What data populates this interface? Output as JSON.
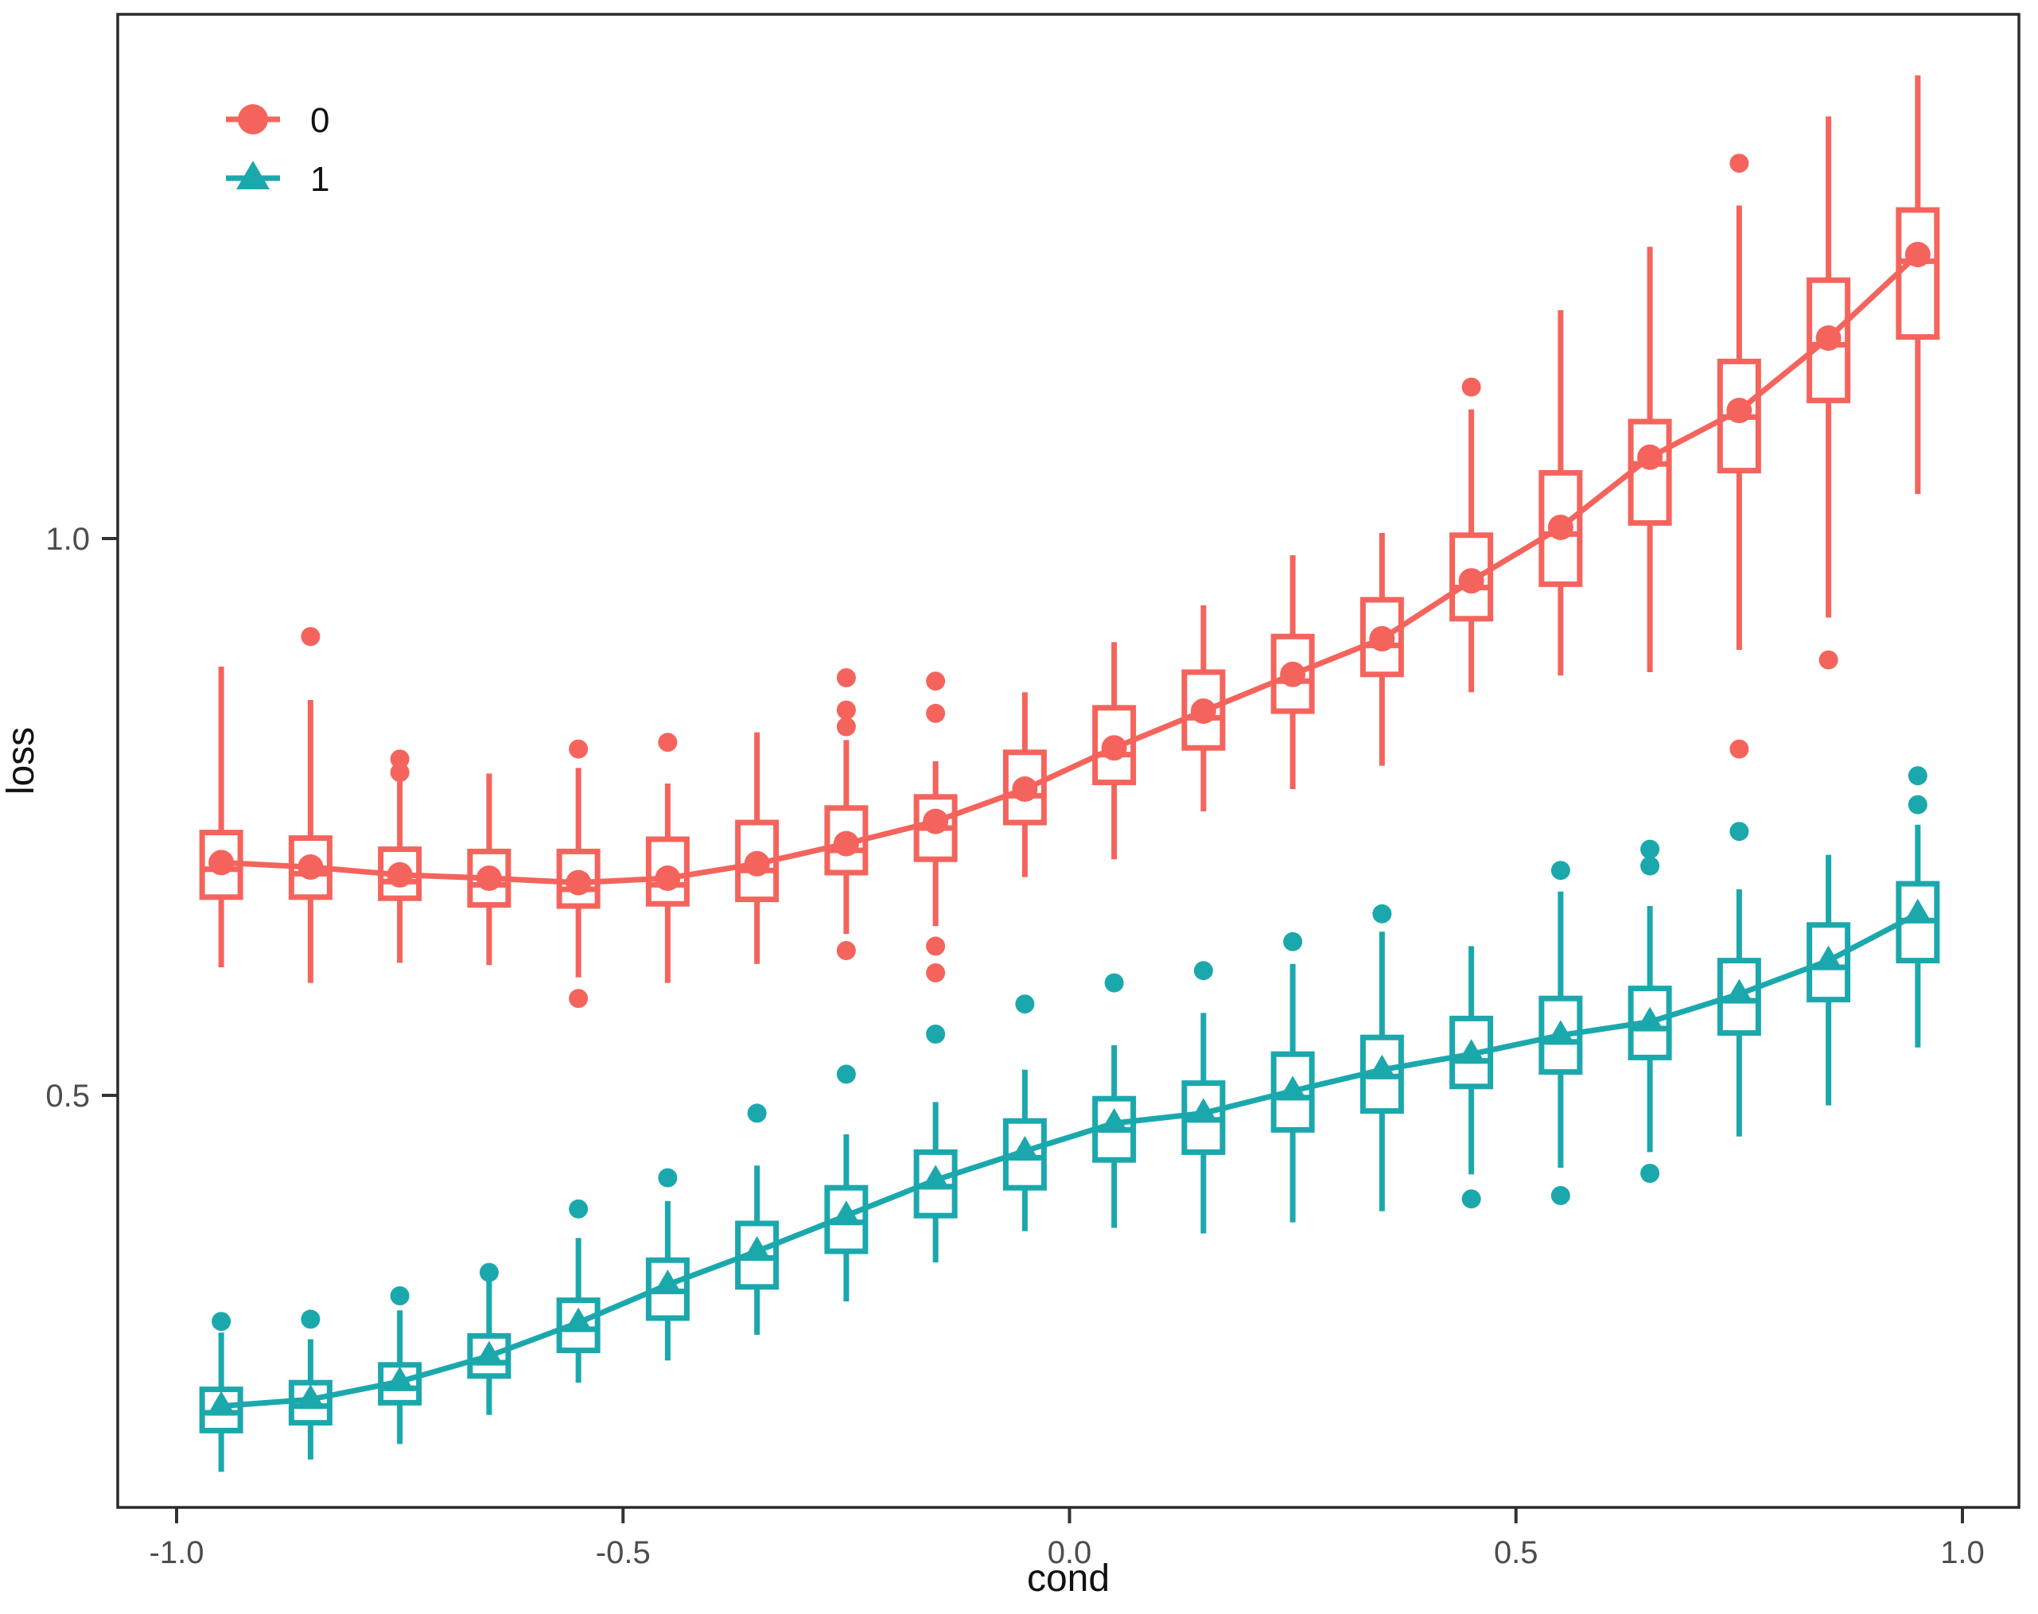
{
  "figure": {
    "xlabel": "cond",
    "ylabel": "loss",
    "background": "#ffffff",
    "border_color": "#2b2b2b"
  },
  "legend": {
    "items": [
      {
        "label": "0",
        "marker": "circle",
        "color": "#f4645d"
      },
      {
        "label": "1",
        "marker": "triangle",
        "color": "#1ba8ad"
      }
    ]
  },
  "chart_data": {
    "type": "boxplot-with-mean-line",
    "title": "",
    "xlabel": "cond",
    "ylabel": "loss",
    "xlim": [
      -1.066,
      1.063
    ],
    "ylim": [
      0.13,
      1.471
    ],
    "x_ticks": [
      -1.0,
      -0.5,
      0.0,
      0.5,
      1.0
    ],
    "x_tick_labels": [
      "-1.0",
      "-0.5",
      "0.0",
      "0.5",
      "1.0"
    ],
    "y_ticks": [
      0.5,
      1.0
    ],
    "y_tick_labels": [
      "0.5",
      "1.0"
    ],
    "grid": false,
    "legend_position": "top-left-inside",
    "categories": [
      -0.95,
      -0.85,
      -0.75,
      -0.65,
      -0.55,
      -0.45,
      -0.35,
      -0.25,
      -0.15,
      -0.05,
      0.05,
      0.15,
      0.25,
      0.35,
      0.45,
      0.55,
      0.65,
      0.75,
      0.85,
      0.95
    ],
    "series": [
      {
        "name": "0",
        "marker": "circle",
        "color": "#f4645d",
        "boxes": [
          {
            "x": -0.95,
            "q1": 0.678,
            "median": 0.703,
            "q3": 0.736,
            "mean": 0.709,
            "whisker_lo": 0.615,
            "whisker_hi": 0.885,
            "outliers": []
          },
          {
            "x": -0.85,
            "q1": 0.678,
            "median": 0.699,
            "q3": 0.731,
            "mean": 0.705,
            "whisker_lo": 0.601,
            "whisker_hi": 0.855,
            "outliers": [
              0.912
            ]
          },
          {
            "x": -0.75,
            "q1": 0.677,
            "median": 0.692,
            "q3": 0.721,
            "mean": 0.698,
            "whisker_lo": 0.619,
            "whisker_hi": 0.784,
            "outliers": [
              0.802,
              0.79
            ]
          },
          {
            "x": -0.65,
            "q1": 0.671,
            "median": 0.689,
            "q3": 0.719,
            "mean": 0.695,
            "whisker_lo": 0.617,
            "whisker_hi": 0.789,
            "outliers": []
          },
          {
            "x": -0.55,
            "q1": 0.67,
            "median": 0.685,
            "q3": 0.719,
            "mean": 0.691,
            "whisker_lo": 0.606,
            "whisker_hi": 0.794,
            "outliers": [
              0.811,
              0.587
            ]
          },
          {
            "x": -0.45,
            "q1": 0.672,
            "median": 0.689,
            "q3": 0.73,
            "mean": 0.695,
            "whisker_lo": 0.601,
            "whisker_hi": 0.78,
            "outliers": [
              0.817
            ]
          },
          {
            "x": -0.35,
            "q1": 0.676,
            "median": 0.702,
            "q3": 0.745,
            "mean": 0.708,
            "whisker_lo": 0.618,
            "whisker_hi": 0.826,
            "outliers": []
          },
          {
            "x": -0.25,
            "q1": 0.7,
            "median": 0.72,
            "q3": 0.758,
            "mean": 0.726,
            "whisker_lo": 0.645,
            "whisker_hi": 0.819,
            "outliers": [
              0.875,
              0.846,
              0.831,
              0.63
            ]
          },
          {
            "x": -0.15,
            "q1": 0.712,
            "median": 0.74,
            "q3": 0.768,
            "mean": 0.746,
            "whisker_lo": 0.652,
            "whisker_hi": 0.8,
            "outliers": [
              0.872,
              0.843,
              0.634,
              0.61
            ]
          },
          {
            "x": -0.05,
            "q1": 0.745,
            "median": 0.769,
            "q3": 0.808,
            "mean": 0.775,
            "whisker_lo": 0.696,
            "whisker_hi": 0.862,
            "outliers": []
          },
          {
            "x": 0.05,
            "q1": 0.781,
            "median": 0.806,
            "q3": 0.848,
            "mean": 0.812,
            "whisker_lo": 0.712,
            "whisker_hi": 0.907,
            "outliers": []
          },
          {
            "x": 0.15,
            "q1": 0.812,
            "median": 0.839,
            "q3": 0.88,
            "mean": 0.845,
            "whisker_lo": 0.755,
            "whisker_hi": 0.94,
            "outliers": []
          },
          {
            "x": 0.25,
            "q1": 0.845,
            "median": 0.872,
            "q3": 0.912,
            "mean": 0.878,
            "whisker_lo": 0.775,
            "whisker_hi": 0.985,
            "outliers": []
          },
          {
            "x": 0.35,
            "q1": 0.878,
            "median": 0.904,
            "q3": 0.945,
            "mean": 0.91,
            "whisker_lo": 0.796,
            "whisker_hi": 1.005,
            "outliers": []
          },
          {
            "x": 0.45,
            "q1": 0.928,
            "median": 0.956,
            "q3": 1.003,
            "mean": 0.962,
            "whisker_lo": 0.862,
            "whisker_hi": 1.116,
            "outliers": [
              1.136
            ]
          },
          {
            "x": 0.55,
            "q1": 0.959,
            "median": 1.004,
            "q3": 1.059,
            "mean": 1.01,
            "whisker_lo": 0.877,
            "whisker_hi": 1.205,
            "outliers": []
          },
          {
            "x": 0.65,
            "q1": 1.014,
            "median": 1.067,
            "q3": 1.105,
            "mean": 1.073,
            "whisker_lo": 0.88,
            "whisker_hi": 1.262,
            "outliers": []
          },
          {
            "x": 0.75,
            "q1": 1.061,
            "median": 1.109,
            "q3": 1.159,
            "mean": 1.115,
            "whisker_lo": 0.9,
            "whisker_hi": 1.299,
            "outliers": [
              1.337,
              0.811
            ]
          },
          {
            "x": 0.85,
            "q1": 1.124,
            "median": 1.174,
            "q3": 1.232,
            "mean": 1.18,
            "whisker_lo": 0.929,
            "whisker_hi": 1.379,
            "outliers": [
              0.891
            ]
          },
          {
            "x": 0.95,
            "q1": 1.181,
            "median": 1.249,
            "q3": 1.295,
            "mean": 1.255,
            "whisker_lo": 1.04,
            "whisker_hi": 1.416,
            "outliers": []
          }
        ]
      },
      {
        "name": "1",
        "marker": "triangle",
        "color": "#1ba8ad",
        "boxes": [
          {
            "x": -0.95,
            "q1": 0.199,
            "median": 0.215,
            "q3": 0.236,
            "mean": 0.221,
            "whisker_lo": 0.162,
            "whisker_hi": 0.287,
            "outliers": [
              0.297
            ]
          },
          {
            "x": -0.85,
            "q1": 0.206,
            "median": 0.221,
            "q3": 0.242,
            "mean": 0.227,
            "whisker_lo": 0.173,
            "whisker_hi": 0.281,
            "outliers": [
              0.299
            ]
          },
          {
            "x": -0.75,
            "q1": 0.224,
            "median": 0.237,
            "q3": 0.258,
            "mean": 0.243,
            "whisker_lo": 0.187,
            "whisker_hi": 0.307,
            "outliers": [
              0.32
            ]
          },
          {
            "x": -0.65,
            "q1": 0.248,
            "median": 0.26,
            "q3": 0.284,
            "mean": 0.266,
            "whisker_lo": 0.213,
            "whisker_hi": 0.333,
            "outliers": [
              0.341
            ]
          },
          {
            "x": -0.55,
            "q1": 0.271,
            "median": 0.29,
            "q3": 0.316,
            "mean": 0.296,
            "whisker_lo": 0.242,
            "whisker_hi": 0.372,
            "outliers": [
              0.398
            ]
          },
          {
            "x": -0.45,
            "q1": 0.3,
            "median": 0.324,
            "q3": 0.352,
            "mean": 0.33,
            "whisker_lo": 0.262,
            "whisker_hi": 0.405,
            "outliers": [
              0.426
            ]
          },
          {
            "x": -0.35,
            "q1": 0.328,
            "median": 0.354,
            "q3": 0.385,
            "mean": 0.36,
            "whisker_lo": 0.285,
            "whisker_hi": 0.437,
            "outliers": [
              0.484
            ]
          },
          {
            "x": -0.25,
            "q1": 0.36,
            "median": 0.386,
            "q3": 0.417,
            "mean": 0.392,
            "whisker_lo": 0.315,
            "whisker_hi": 0.465,
            "outliers": [
              0.519
            ]
          },
          {
            "x": -0.15,
            "q1": 0.392,
            "median": 0.418,
            "q3": 0.449,
            "mean": 0.424,
            "whisker_lo": 0.35,
            "whisker_hi": 0.494,
            "outliers": [
              0.555
            ]
          },
          {
            "x": -0.05,
            "q1": 0.417,
            "median": 0.444,
            "q3": 0.477,
            "mean": 0.45,
            "whisker_lo": 0.378,
            "whisker_hi": 0.523,
            "outliers": [
              0.582
            ]
          },
          {
            "x": 0.05,
            "q1": 0.442,
            "median": 0.469,
            "q3": 0.497,
            "mean": 0.475,
            "whisker_lo": 0.381,
            "whisker_hi": 0.545,
            "outliers": [
              0.601
            ]
          },
          {
            "x": 0.15,
            "q1": 0.449,
            "median": 0.478,
            "q3": 0.511,
            "mean": 0.484,
            "whisker_lo": 0.376,
            "whisker_hi": 0.574,
            "outliers": [
              0.612
            ]
          },
          {
            "x": 0.25,
            "q1": 0.469,
            "median": 0.498,
            "q3": 0.537,
            "mean": 0.504,
            "whisker_lo": 0.386,
            "whisker_hi": 0.618,
            "outliers": [
              0.638
            ]
          },
          {
            "x": 0.35,
            "q1": 0.486,
            "median": 0.517,
            "q3": 0.552,
            "mean": 0.523,
            "whisker_lo": 0.396,
            "whisker_hi": 0.647,
            "outliers": [
              0.663
            ]
          },
          {
            "x": 0.45,
            "q1": 0.508,
            "median": 0.531,
            "q3": 0.569,
            "mean": 0.537,
            "whisker_lo": 0.429,
            "whisker_hi": 0.634,
            "outliers": [
              0.407
            ]
          },
          {
            "x": 0.55,
            "q1": 0.521,
            "median": 0.548,
            "q3": 0.587,
            "mean": 0.554,
            "whisker_lo": 0.435,
            "whisker_hi": 0.683,
            "outliers": [
              0.702,
              0.41
            ]
          },
          {
            "x": 0.65,
            "q1": 0.534,
            "median": 0.56,
            "q3": 0.596,
            "mean": 0.566,
            "whisker_lo": 0.449,
            "whisker_hi": 0.67,
            "outliers": [
              0.721,
              0.706,
              0.43
            ]
          },
          {
            "x": 0.75,
            "q1": 0.556,
            "median": 0.585,
            "q3": 0.621,
            "mean": 0.591,
            "whisker_lo": 0.463,
            "whisker_hi": 0.685,
            "outliers": [
              0.737
            ]
          },
          {
            "x": 0.85,
            "q1": 0.586,
            "median": 0.615,
            "q3": 0.653,
            "mean": 0.621,
            "whisker_lo": 0.491,
            "whisker_hi": 0.716,
            "outliers": []
          },
          {
            "x": 0.95,
            "q1": 0.621,
            "median": 0.657,
            "q3": 0.69,
            "mean": 0.663,
            "whisker_lo": 0.543,
            "whisker_hi": 0.743,
            "outliers": [
              0.787,
              0.761
            ]
          }
        ]
      }
    ]
  }
}
